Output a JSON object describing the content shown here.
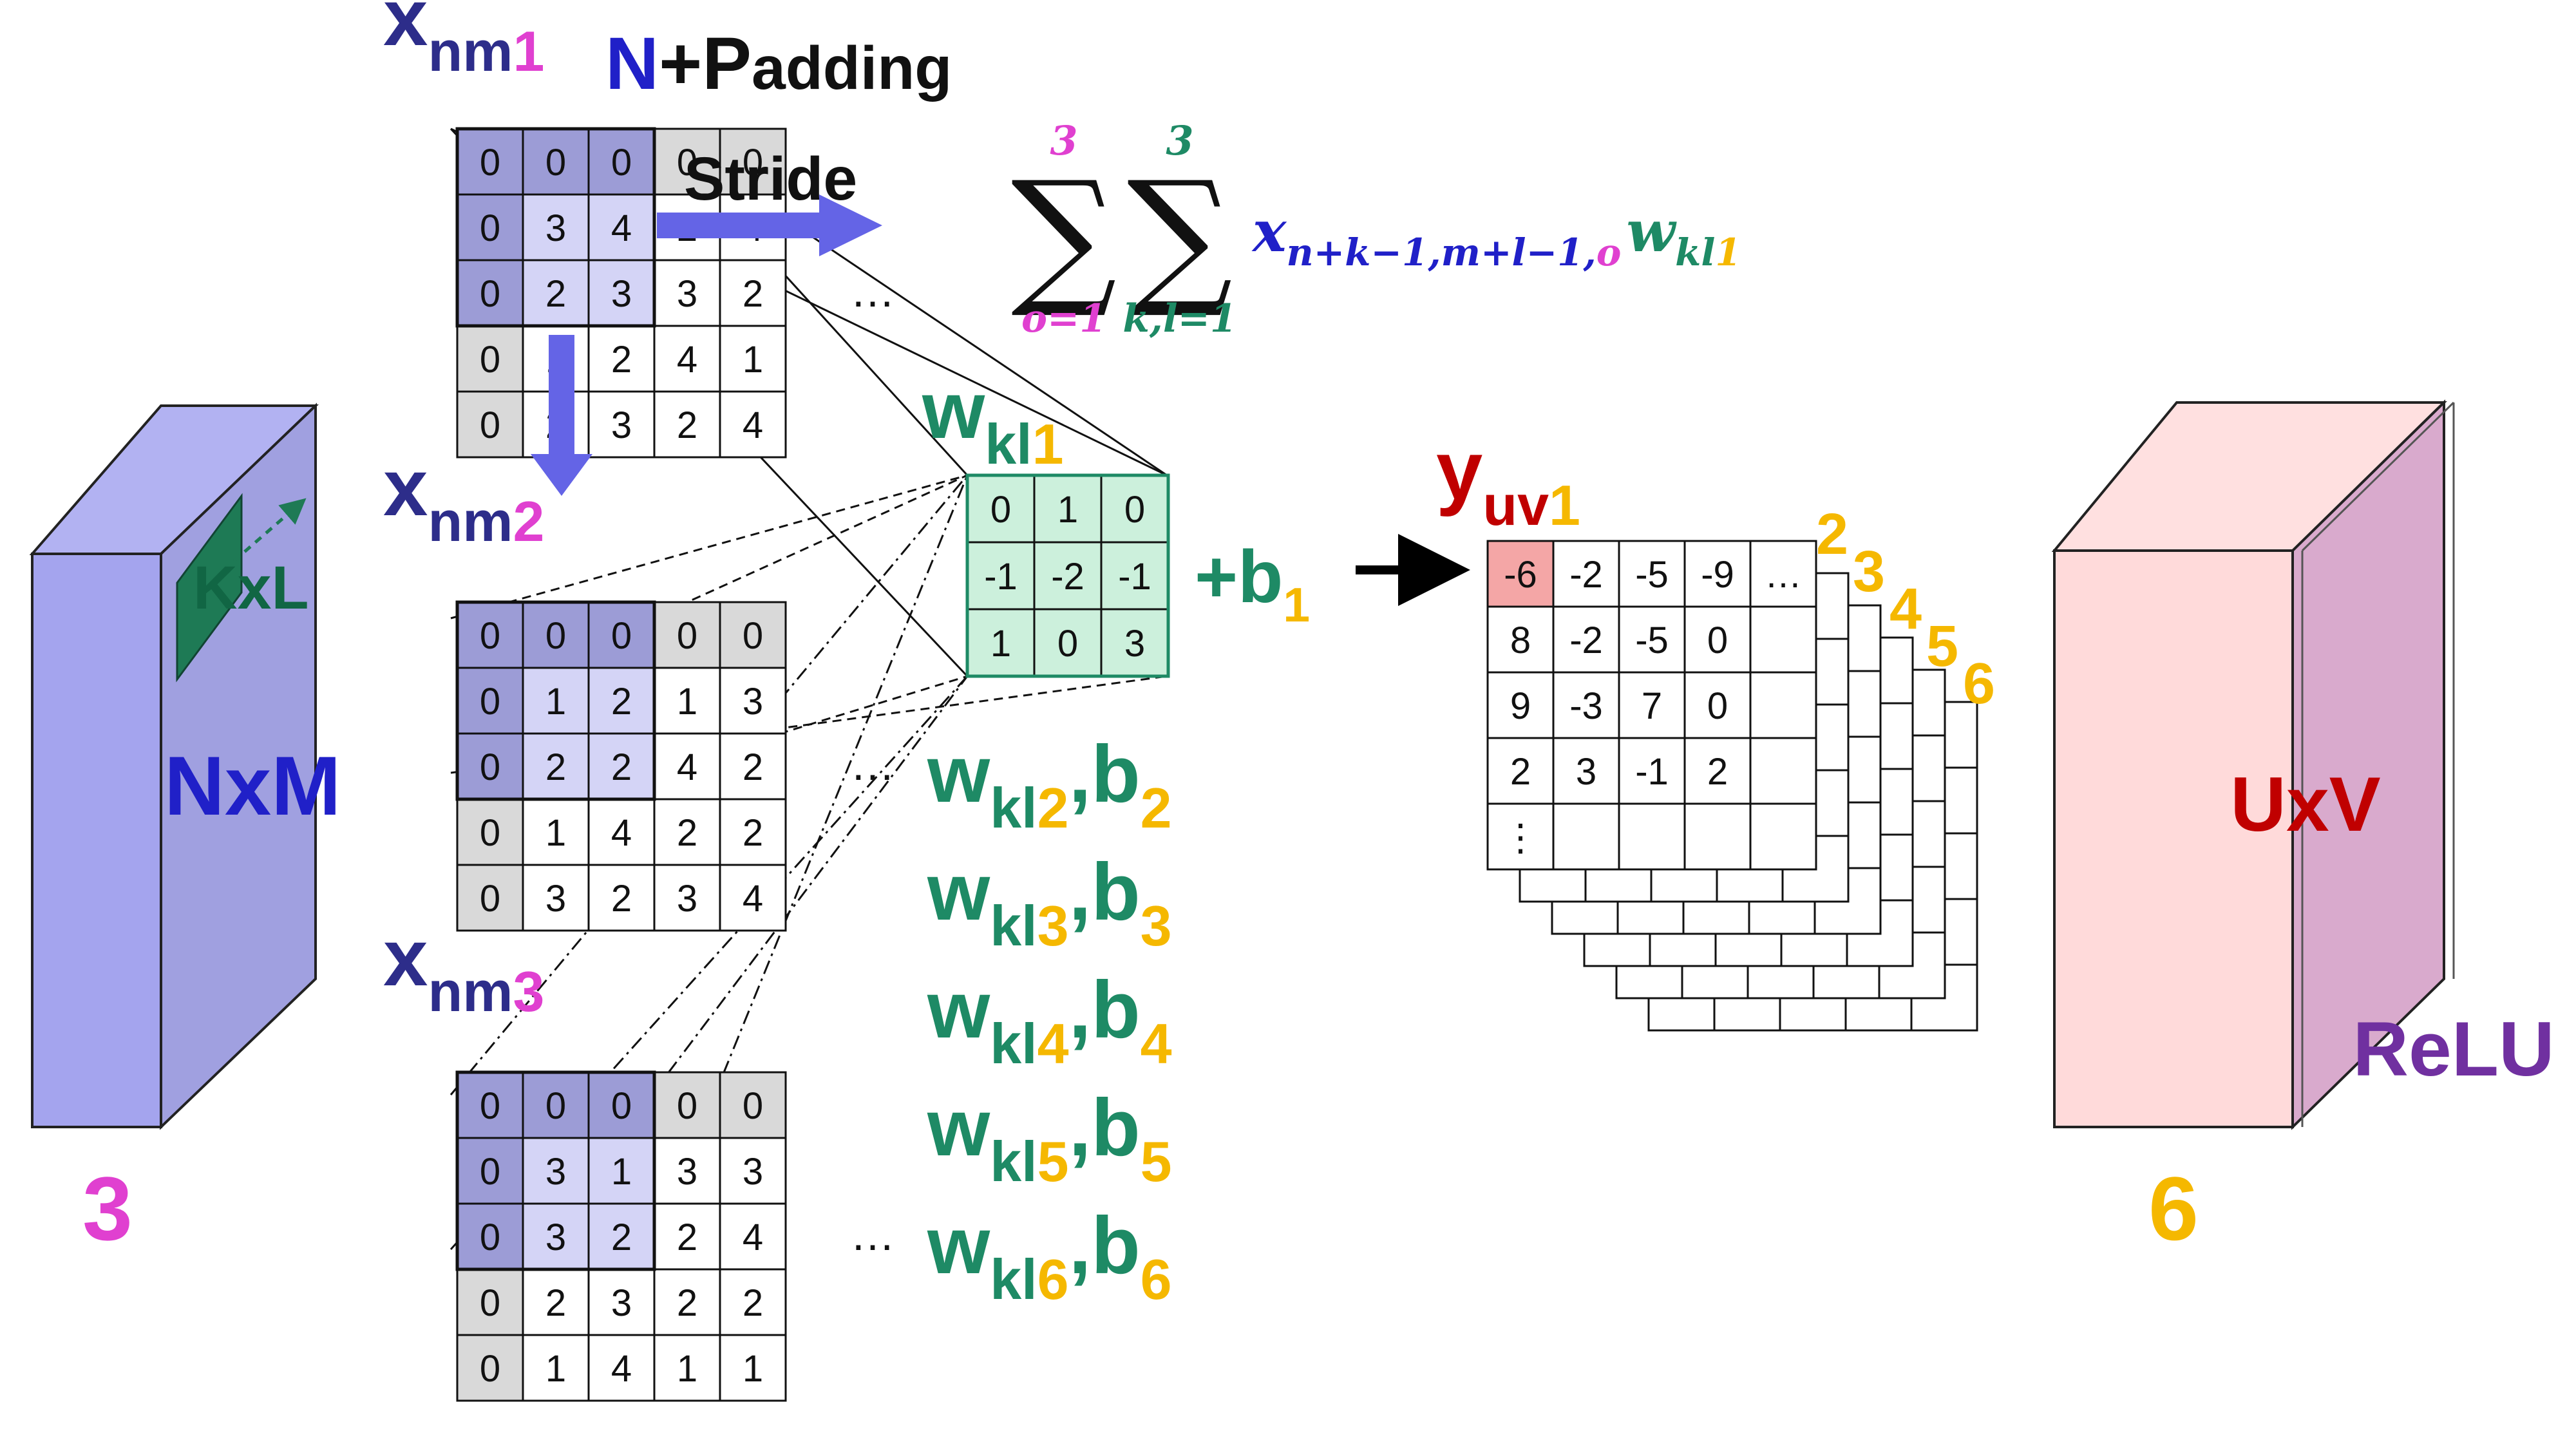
{
  "colors": {
    "input_block": "#a4a4ee",
    "output_block": "#ffdada",
    "relu_face": "#d9aacd",
    "kernel_green": "#1e8a65",
    "kernel_fill": "#ccf0dc",
    "shade_gray": "#d9d9d9",
    "shade_blue": "#9c9cd6",
    "shade_blue_light": "#d4d4f6",
    "label_navy": "#2d2d8a",
    "label_blue": "#2020c8",
    "label_pink": "#e040d0",
    "label_orange": "#f5b800",
    "label_red": "#c00000",
    "label_purple": "#7030a0",
    "highlight_cell": "#f4a6a6",
    "arrow_blue": "#6464e6"
  },
  "input_block": {
    "size_label": "NxM",
    "kernel_label": "KxL",
    "channels": "3"
  },
  "output_block": {
    "size_label": "UxV",
    "activation": "ReLU",
    "channels": "6"
  },
  "padding_label": {
    "n": "N",
    "plus": "+P",
    "rest": "adding"
  },
  "stride_label": "Stride",
  "ellipsis": "…",
  "input_channels": [
    {
      "base": "x",
      "sub": "nm",
      "idx": "1",
      "rows": [
        [
          "0",
          "0",
          "0",
          "0",
          "0"
        ],
        [
          "0",
          "3",
          "4",
          "2",
          "4"
        ],
        [
          "0",
          "2",
          "3",
          "3",
          "2"
        ],
        [
          "0",
          "1",
          "2",
          "4",
          "1"
        ],
        [
          "0",
          "2",
          "3",
          "2",
          "4"
        ]
      ]
    },
    {
      "base": "x",
      "sub": "nm",
      "idx": "2",
      "rows": [
        [
          "0",
          "0",
          "0",
          "0",
          "0"
        ],
        [
          "0",
          "1",
          "2",
          "1",
          "3"
        ],
        [
          "0",
          "2",
          "2",
          "4",
          "2"
        ],
        [
          "0",
          "1",
          "4",
          "2",
          "2"
        ],
        [
          "0",
          "3",
          "2",
          "3",
          "4"
        ]
      ]
    },
    {
      "base": "x",
      "sub": "nm",
      "idx": "3",
      "rows": [
        [
          "0",
          "0",
          "0",
          "0",
          "0"
        ],
        [
          "0",
          "3",
          "1",
          "3",
          "3"
        ],
        [
          "0",
          "3",
          "2",
          "2",
          "4"
        ],
        [
          "0",
          "2",
          "3",
          "2",
          "2"
        ],
        [
          "0",
          "1",
          "4",
          "1",
          "1"
        ]
      ]
    }
  ],
  "kernel": {
    "base": "w",
    "sub": "kl",
    "idx": "1",
    "rows": [
      [
        "0",
        "1",
        "0"
      ],
      [
        "-1",
        "-2",
        "-1"
      ],
      [
        "1",
        "0",
        "3"
      ]
    ]
  },
  "bias": {
    "plus": "+b",
    "idx": "1"
  },
  "other_kernels": [
    {
      "w": "w",
      "sub": "kl",
      "idx": "2",
      "b": "b",
      "bidx": "2"
    },
    {
      "w": "w",
      "sub": "kl",
      "idx": "3",
      "b": "b",
      "bidx": "3"
    },
    {
      "w": "w",
      "sub": "kl",
      "idx": "4",
      "b": "b",
      "bidx": "4"
    },
    {
      "w": "w",
      "sub": "kl",
      "idx": "5",
      "b": "b",
      "bidx": "5"
    },
    {
      "w": "w",
      "sub": "kl",
      "idx": "6",
      "b": "b",
      "bidx": "6"
    }
  ],
  "output": {
    "base": "y",
    "sub": "uv",
    "idx": "1",
    "rows": [
      [
        "-6",
        "-2",
        "-5",
        "-9",
        "…"
      ],
      [
        "8",
        "-2",
        "-5",
        "0",
        ""
      ],
      [
        "9",
        "-3",
        "7",
        "0",
        ""
      ],
      [
        "2",
        "3",
        "-1",
        "2",
        ""
      ],
      [
        "⋮",
        "",
        "",
        "",
        ""
      ]
    ],
    "stack_labels": [
      "2",
      "3",
      "4",
      "5",
      "6"
    ]
  },
  "formula": {
    "sum1_top": "3",
    "sum1_bottom": "o=1",
    "sum2_top": "3",
    "sum2_bottom": "k,l=1",
    "sigma": "∑",
    "x": "x",
    "x_sub": "n+k−1,m+l−1,",
    "x_sub_o": "o",
    "w": "w",
    "w_sub": "kl",
    "w_sub_idx": "1"
  }
}
